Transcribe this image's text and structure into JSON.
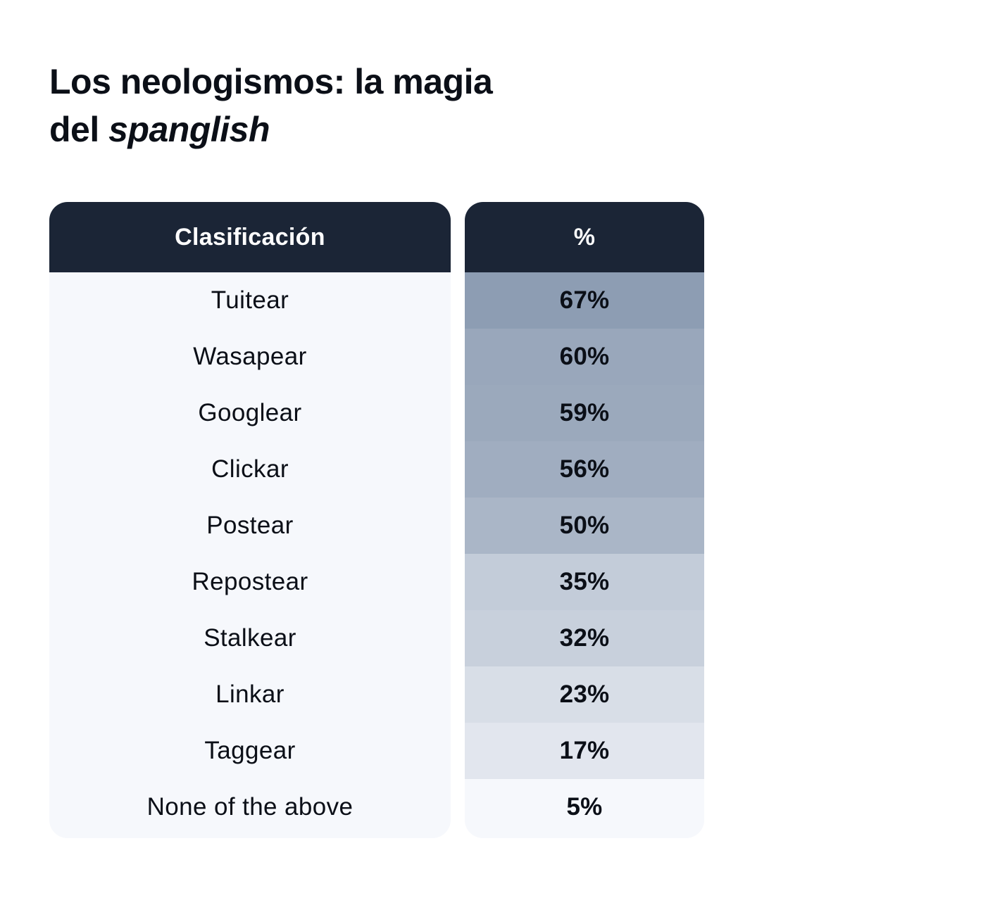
{
  "title": {
    "line1": "Los neologismos: la magia",
    "line2_prefix": "del ",
    "line2_emphasis": "spanglish"
  },
  "chart_data": {
    "type": "table",
    "title": "Los neologismos: la magia del spanglish",
    "columns": [
      "Clasificación",
      "%"
    ],
    "rows": [
      {
        "label": "Tuitear",
        "value": 67,
        "display": "67%"
      },
      {
        "label": "Wasapear",
        "value": 60,
        "display": "60%"
      },
      {
        "label": "Googlear",
        "value": 59,
        "display": "59%"
      },
      {
        "label": "Clickar",
        "value": 56,
        "display": "56%"
      },
      {
        "label": "Postear",
        "value": 50,
        "display": "50%"
      },
      {
        "label": "Repostear",
        "value": 35,
        "display": "35%"
      },
      {
        "label": "Stalkear",
        "value": 32,
        "display": "32%"
      },
      {
        "label": "Linkar",
        "value": 23,
        "display": "23%"
      },
      {
        "label": "Taggear",
        "value": 17,
        "display": "17%"
      },
      {
        "label": "None of the above",
        "value": 5,
        "display": "5%"
      }
    ]
  },
  "colors": {
    "header_bg": "#1b2536",
    "header_text": "#ffffff",
    "body_bg": "#f6f8fc",
    "heat_high": "#8d9db3",
    "heat_low": "#f6f8fc"
  }
}
